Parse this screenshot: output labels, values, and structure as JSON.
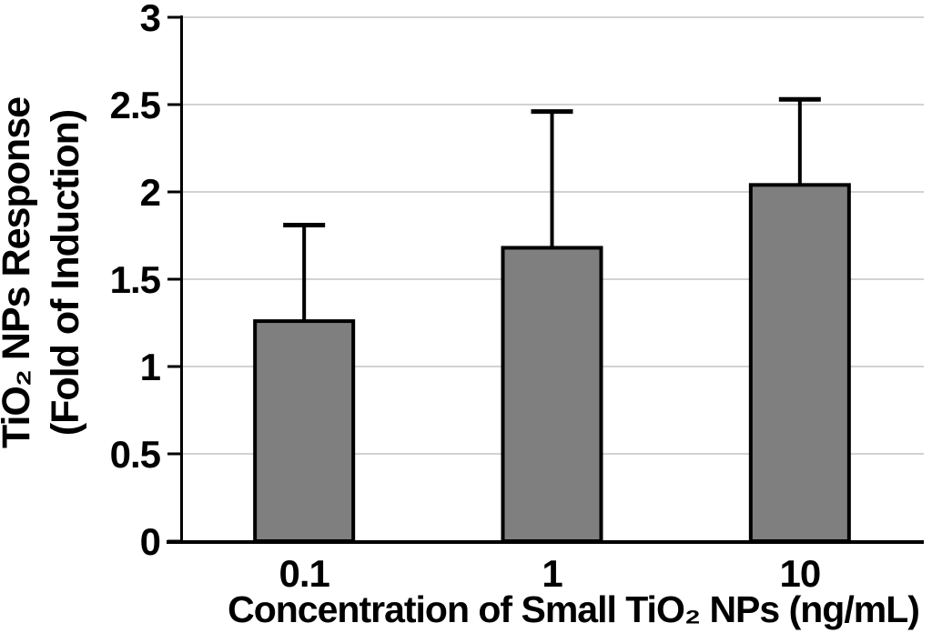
{
  "figure": {
    "background": "#ffffff",
    "bar_fill": "#7f7f7f",
    "bar_border": "#000000",
    "gridline_color": "#d2d2d2",
    "axis_color": "#000000",
    "text_color": "#000000"
  },
  "chart_data": {
    "type": "bar",
    "title": "",
    "xlabel": "Concentration of Small TiO₂ NPs (ng/mL)",
    "ylabel_line1": "TiO₂ NPs Response",
    "ylabel_line2": "(Fold of Induction)",
    "categories": [
      "0.1",
      "1",
      "10"
    ],
    "values": [
      1.26,
      1.68,
      2.04
    ],
    "error_plus": [
      0.55,
      0.78,
      0.49
    ],
    "error_tops": [
      1.81,
      2.46,
      2.53
    ],
    "ylim": [
      0,
      3
    ],
    "ytick_step": 0.5,
    "yticks": [
      0,
      0.5,
      1,
      1.5,
      2,
      2.5,
      3
    ],
    "ytick_labels": [
      "0",
      "0.5",
      "1",
      "1.5",
      "2",
      "2.5",
      "3"
    ],
    "grid": true,
    "legend": "none",
    "bar_color": "#7f7f7f"
  }
}
